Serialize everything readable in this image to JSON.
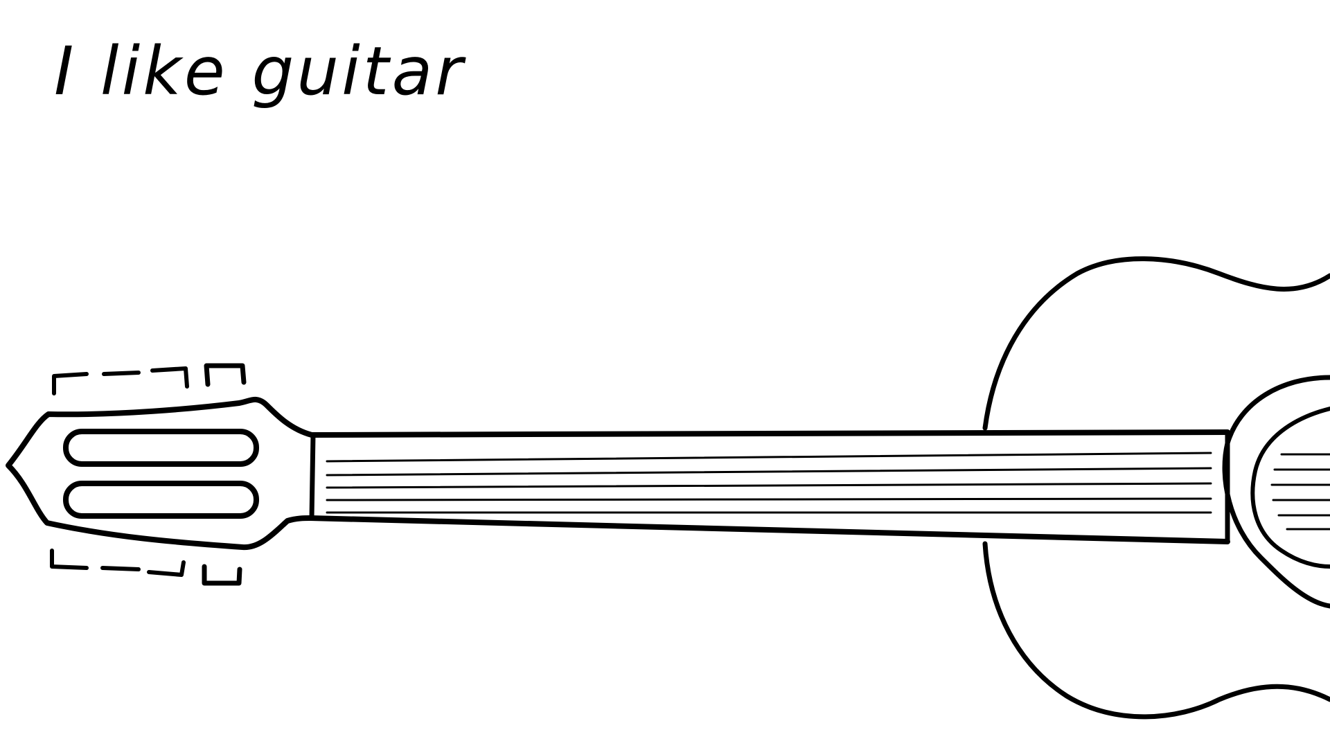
{
  "caption": {
    "text": "I like guitar"
  },
  "illustration": {
    "subject": "guitar",
    "style": "black-ink-line-drawing",
    "background_color": "#ffffff",
    "ink_color": "#000000"
  }
}
